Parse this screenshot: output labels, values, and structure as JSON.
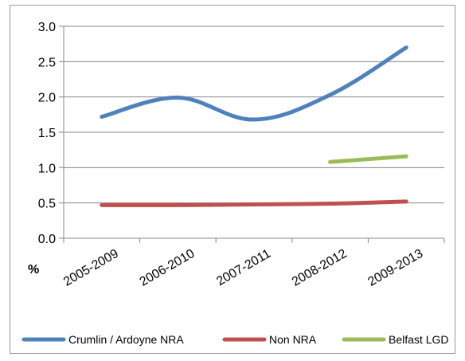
{
  "chart_data": {
    "type": "line",
    "ylabel": "%",
    "ylim": [
      0,
      3.0
    ],
    "y_ticks": [
      "0.0",
      "0.5",
      "1.0",
      "1.5",
      "2.0",
      "2.5",
      "3.0"
    ],
    "categories": [
      "2005-2009",
      "2006-2010",
      "2007-2011",
      "2008-2012",
      "2009-2013"
    ],
    "grid": true,
    "legend_position": "bottom",
    "series": [
      {
        "name": "Crumlin / Ardoyne NRA",
        "color": "#4f81bd",
        "values": [
          1.72,
          1.99,
          1.68,
          2.03,
          2.7
        ]
      },
      {
        "name": "Non NRA",
        "color": "#c0504d",
        "values": [
          0.47,
          0.47,
          0.48,
          0.49,
          0.52
        ]
      },
      {
        "name": "Belfast LGD",
        "color": "#9bbb59",
        "values": [
          null,
          null,
          null,
          1.08,
          1.16
        ]
      }
    ]
  }
}
